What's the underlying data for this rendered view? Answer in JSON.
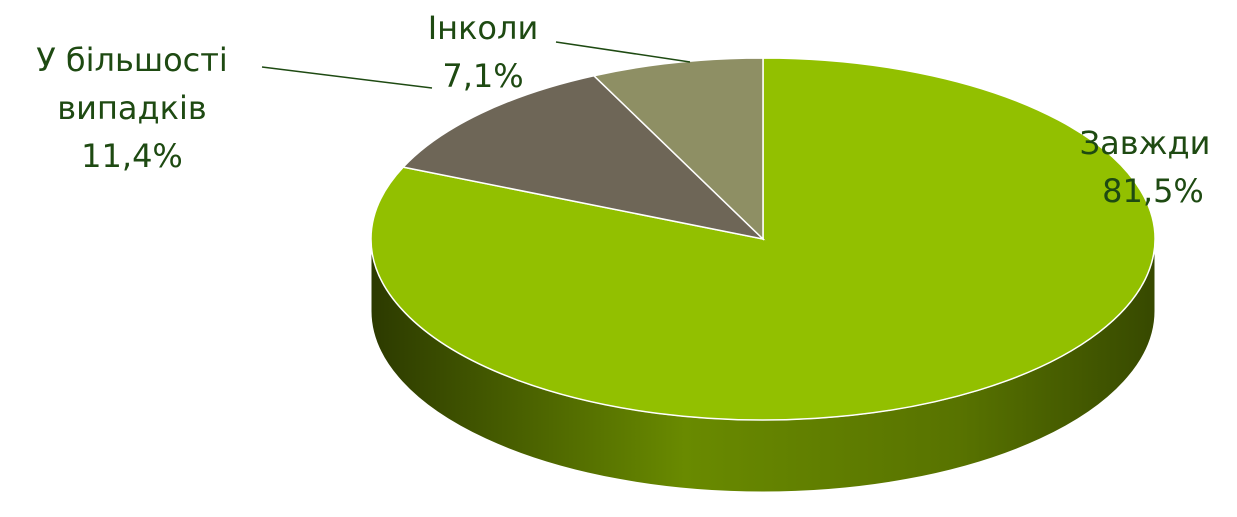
{
  "chart_data": {
    "type": "pie",
    "categories": [
      "Завжди",
      "У більшості випадків",
      "Інколи"
    ],
    "values": [
      81.5,
      11.4,
      7.1
    ],
    "value_labels": [
      "81,5%",
      "11,4%",
      "7,1%"
    ],
    "colors": [
      "#92c000",
      "#6e6657",
      "#8e8f64"
    ]
  }
}
